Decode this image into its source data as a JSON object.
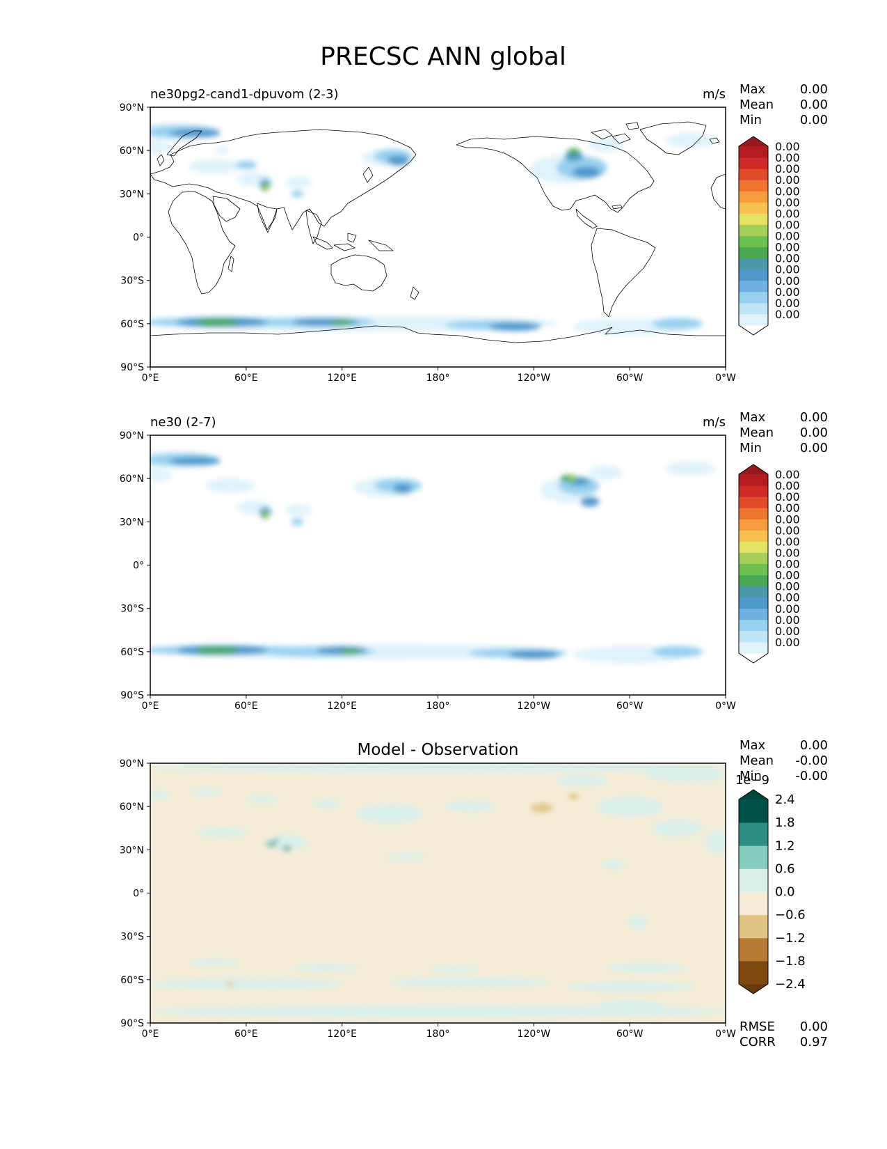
{
  "figure": {
    "title": "PRECSC ANN global",
    "land_color": "#ffffff",
    "coast_color": "#000000"
  },
  "chart_data": [
    {
      "type": "heatmap",
      "title": "ne30pg2-cand1-dpuvom (2-3)",
      "units": "m/s",
      "xticks": [
        "0°E",
        "60°E",
        "120°E",
        "180°",
        "120°W",
        "60°W",
        "0°W"
      ],
      "yticks": [
        "90°N",
        "60°N",
        "30°N",
        "0°",
        "30°S",
        "60°S",
        "90°S"
      ],
      "xlim": [
        0,
        360
      ],
      "ylim": [
        -90,
        90
      ],
      "stats": [
        {
          "label": "Max",
          "value": "0.00"
        },
        {
          "label": "Mean",
          "value": "0.00"
        },
        {
          "label": "Min",
          "value": "0.00"
        }
      ],
      "colorbar": {
        "colors": [
          "#ffffff",
          "#e0f3fb",
          "#bfe6f7",
          "#98d0ef",
          "#6fb1e0",
          "#4f98cc",
          "#4a99a8",
          "#48a952",
          "#6dbf50",
          "#a5cf56",
          "#e3e264",
          "#f7c050",
          "#f79b3f",
          "#ee7430",
          "#e24b2a",
          "#cf2a27",
          "#b51c20",
          "#951a1c"
        ],
        "labels": [
          "0.00",
          "0.00",
          "0.00",
          "0.00",
          "0.00",
          "0.00",
          "0.00",
          "0.00",
          "0.00",
          "0.00",
          "0.00",
          "0.00",
          "0.00",
          "0.00",
          "0.00",
          "0.00"
        ],
        "extend": "both"
      },
      "contours": [
        {
          "level": 1,
          "shapes": [
            [
              10,
              73,
              60,
              10
            ],
            [
              3,
              62,
              20,
              7
            ],
            [
              45,
              60,
              8,
              3
            ],
            [
              40,
              49,
              30,
              8
            ],
            [
              148,
              55,
              30,
              10
            ],
            [
              258,
              47,
              38,
              18
            ],
            [
              285,
              64,
              20,
              8
            ],
            [
              338,
              67,
              30,
              8
            ],
            [
              65,
              40,
              20,
              8
            ],
            [
              93,
              38,
              15,
              6
            ],
            [
              140,
              -60,
              230,
              9
            ],
            [
              300,
              -62,
              70,
              10
            ]
          ]
        },
        {
          "level": 3,
          "shapes": [
            [
              20,
              73,
              45,
              7
            ],
            [
              60,
              50,
              12,
              4
            ],
            [
              152,
              56,
              22,
              8
            ],
            [
              270,
              48,
              30,
              14
            ],
            [
              45,
              -59,
              100,
              5
            ],
            [
              105,
              -59,
              70,
              5
            ],
            [
              215,
              -61,
              60,
              5
            ],
            [
              330,
              -60,
              30,
              6
            ],
            [
              72,
              37,
              6,
              6
            ],
            [
              92,
              30,
              6,
              3
            ]
          ]
        },
        {
          "level": 5,
          "shapes": [
            [
              28,
              72,
              30,
              4
            ],
            [
              155,
              53,
              12,
              5
            ],
            [
              273,
              45,
              16,
              6
            ],
            [
              265,
              56,
              10,
              5
            ],
            [
              45,
              -59,
              55,
              5
            ],
            [
              110,
              -59,
              40,
              4
            ],
            [
              228,
              -62,
              30,
              4
            ],
            [
              72,
              36,
              5,
              5
            ]
          ]
        },
        {
          "level": 7,
          "shapes": [
            [
              42,
              -59,
              25,
              3
            ],
            [
              120,
              -59,
              12,
              2
            ],
            [
              72,
              35,
              3,
              4
            ],
            [
              265,
              59,
              6,
              3
            ]
          ]
        },
        {
          "level": 9,
          "shapes": [
            [
              73,
              35,
              2,
              2
            ]
          ]
        }
      ]
    },
    {
      "type": "heatmap",
      "title": "ne30 (2-7)",
      "units": "m/s",
      "xticks": [
        "0°E",
        "60°E",
        "120°E",
        "180°",
        "120°W",
        "60°W",
        "0°W"
      ],
      "yticks": [
        "90°N",
        "60°N",
        "30°N",
        "0°",
        "30°S",
        "60°S",
        "90°S"
      ],
      "xlim": [
        0,
        360
      ],
      "ylim": [
        -90,
        90
      ],
      "stats": [
        {
          "label": "Max",
          "value": "0.00"
        },
        {
          "label": "Mean",
          "value": "0.00"
        },
        {
          "label": "Min",
          "value": "0.00"
        }
      ],
      "colorbar": {
        "colors": [
          "#ffffff",
          "#e0f3fb",
          "#bfe6f7",
          "#98d0ef",
          "#6fb1e0",
          "#4f98cc",
          "#4a99a8",
          "#48a952",
          "#6dbf50",
          "#a5cf56",
          "#e3e264",
          "#f7c050",
          "#f79b3f",
          "#ee7430",
          "#e24b2a",
          "#cf2a27",
          "#b51c20",
          "#951a1c"
        ],
        "labels": [
          "0.00",
          "0.00",
          "0.00",
          "0.00",
          "0.00",
          "0.00",
          "0.00",
          "0.00",
          "0.00",
          "0.00",
          "0.00",
          "0.00",
          "0.00",
          "0.00",
          "0.00",
          "0.00"
        ],
        "extend": "both"
      },
      "contours": [
        {
          "level": 1,
          "shapes": [
            [
              10,
              73,
              60,
              10
            ],
            [
              3,
              62,
              20,
              7
            ],
            [
              50,
              55,
              30,
              8
            ],
            [
              148,
              54,
              40,
              12
            ],
            [
              262,
              52,
              35,
              16
            ],
            [
              285,
              64,
              20,
              8
            ],
            [
              338,
              67,
              30,
              8
            ],
            [
              65,
              40,
              20,
              8
            ],
            [
              93,
              38,
              15,
              6
            ],
            [
              140,
              -60,
              230,
              9
            ],
            [
              300,
              -62,
              70,
              10
            ]
          ]
        },
        {
          "level": 3,
          "shapes": [
            [
              20,
              73,
              45,
              7
            ],
            [
              155,
              55,
              28,
              8
            ],
            [
              268,
              55,
              24,
              10
            ],
            [
              45,
              -59,
              100,
              5
            ],
            [
              105,
              -60,
              70,
              5
            ],
            [
              230,
              -61,
              60,
              5
            ],
            [
              330,
              -60,
              30,
              6
            ],
            [
              72,
              37,
              6,
              6
            ],
            [
              92,
              30,
              6,
              3
            ]
          ]
        },
        {
          "level": 5,
          "shapes": [
            [
              28,
              72,
              30,
              4
            ],
            [
              158,
              53,
              10,
              5
            ],
            [
              268,
              58,
              12,
              4
            ],
            [
              275,
              44,
              10,
              5
            ],
            [
              45,
              -59,
              55,
              5
            ],
            [
              120,
              -59,
              30,
              4
            ],
            [
              240,
              -62,
              30,
              4
            ],
            [
              72,
              36,
              5,
              5
            ]
          ]
        },
        {
          "level": 7,
          "shapes": [
            [
              42,
              -59,
              25,
              3
            ],
            [
              125,
              -60,
              12,
              2
            ],
            [
              72,
              35,
              3,
              4
            ],
            [
              262,
              60,
              10,
              3
            ]
          ]
        },
        {
          "level": 9,
          "shapes": [
            [
              73,
              35,
              2,
              2
            ],
            [
              264,
              60,
              3,
              1
            ]
          ]
        }
      ]
    },
    {
      "type": "heatmap",
      "title": "Model - Observation",
      "units": "",
      "xticks": [
        "0°E",
        "60°E",
        "120°E",
        "180°",
        "120°W",
        "60°W",
        "0°W"
      ],
      "yticks": [
        "90°N",
        "60°N",
        "30°N",
        "0°",
        "30°S",
        "60°S",
        "90°S"
      ],
      "xlim": [
        0,
        360
      ],
      "ylim": [
        -90,
        90
      ],
      "stats": [
        {
          "label": "Max",
          "value": "0.00"
        },
        {
          "label": "Mean",
          "value": "-0.00"
        },
        {
          "label": "Min",
          "value": "-0.00"
        }
      ],
      "bottom_stats": [
        {
          "label": "RMSE",
          "value": "0.00"
        },
        {
          "label": "CORR",
          "value": "0.97"
        }
      ],
      "colorbar": {
        "scale_label": "1e−9",
        "colors": [
          "#6a3a0c",
          "#7e4a10",
          "#b87b33",
          "#dfc485",
          "#f4ecd6",
          "#d9efea",
          "#86cdbf",
          "#2e8e86",
          "#005147",
          "#01463c"
        ],
        "labels": [
          "2.4",
          "1.8",
          "1.2",
          "0.6",
          "0.0",
          "−0.6",
          "−1.2",
          "−1.8",
          "−2.4"
        ],
        "extend": "both",
        "background": "#f4ecd6"
      },
      "contours": [
        {
          "level": 5,
          "shapes": [
            [
              180,
              87,
              360,
              5
            ],
            [
              335,
              82,
              50,
              8
            ],
            [
              270,
              78,
              30,
              6
            ],
            [
              5,
              68,
              12,
              4
            ],
            [
              35,
              70,
              18,
              3
            ],
            [
              70,
              65,
              20,
              3
            ],
            [
              110,
              62,
              15,
              4
            ],
            [
              150,
              55,
              40,
              12
            ],
            [
              200,
              60,
              30,
              6
            ],
            [
              300,
              60,
              40,
              12
            ],
            [
              330,
              45,
              30,
              10
            ],
            [
              355,
              35,
              14,
              14
            ],
            [
              45,
              42,
              30,
              5
            ],
            [
              85,
              35,
              25,
              8
            ],
            [
              160,
              25,
              25,
              3
            ],
            [
              290,
              20,
              12,
              5
            ],
            [
              305,
              -20,
              10,
              8
            ],
            [
              40,
              -48,
              30,
              3
            ],
            [
              110,
              -52,
              40,
              3
            ],
            [
              190,
              -53,
              30,
              3
            ],
            [
              310,
              -52,
              50,
              4
            ],
            [
              60,
              -63,
              120,
              6
            ],
            [
              200,
              -62,
              100,
              5
            ],
            [
              300,
              -65,
              80,
              5
            ],
            [
              180,
              -82,
              360,
              7
            ],
            [
              300,
              -78,
              40,
              6
            ]
          ]
        },
        {
          "level": 6,
          "shapes": [
            [
              75,
              34,
              4,
              2
            ],
            [
              85,
              31,
              5,
              1
            ],
            [
              79,
              37,
              2,
              1
            ]
          ]
        },
        {
          "level": 7,
          "shapes": [
            [
              77,
              34,
              2,
              1
            ],
            [
              86,
              31,
              2,
              1
            ]
          ]
        },
        {
          "level": 3,
          "shapes": [
            [
              245,
              59,
              12,
              4
            ],
            [
              265,
              67,
              5,
              2
            ],
            [
              50,
              -63,
              3,
              1
            ]
          ]
        }
      ]
    }
  ]
}
